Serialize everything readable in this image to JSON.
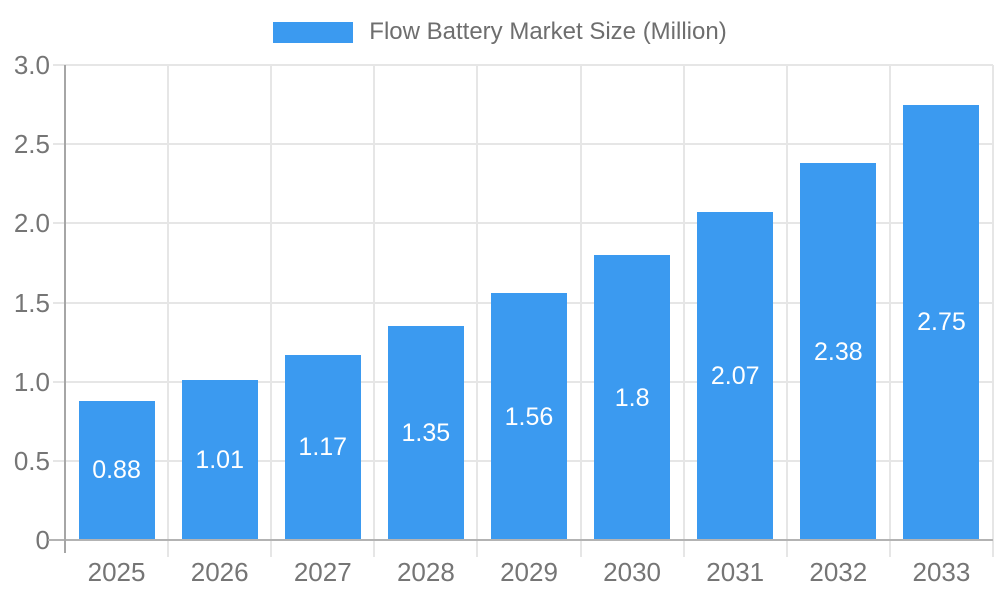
{
  "chart_data": {
    "type": "bar",
    "title": "Flow Battery Market Size (Million)",
    "legend": {
      "position": "top",
      "items": [
        {
          "label": "Flow Battery Market Size (Million)",
          "color": "#3B9AF0"
        }
      ]
    },
    "categories": [
      "2025",
      "2026",
      "2027",
      "2028",
      "2029",
      "2030",
      "2031",
      "2032",
      "2033"
    ],
    "series": [
      {
        "name": "Flow Battery Market Size (Million)",
        "values": [
          0.88,
          1.01,
          1.17,
          1.35,
          1.56,
          1.8,
          2.07,
          2.38,
          2.75
        ],
        "data_labels": [
          "0.88",
          "1.01",
          "1.17",
          "1.35",
          "1.56",
          "1.8",
          "2.07",
          "2.38",
          "2.75"
        ],
        "color": "#3B9AF0"
      }
    ],
    "xlabel": "",
    "ylabel": "",
    "ylim": [
      0,
      3
    ],
    "yticks": [
      {
        "value": 0,
        "label": "0"
      },
      {
        "value": 0.5,
        "label": "0.5"
      },
      {
        "value": 1,
        "label": "1.0"
      },
      {
        "value": 1.5,
        "label": "1.5"
      },
      {
        "value": 2,
        "label": "2.0"
      },
      {
        "value": 2.5,
        "label": "2.5"
      },
      {
        "value": 3,
        "label": "3.0"
      }
    ],
    "grid": {
      "horizontal": true,
      "vertical": true
    },
    "legend_position": "top",
    "colors": {
      "bar": "#3B9AF0",
      "gridline": "#E6E6E6",
      "axis_line": "#A6A6A6",
      "baseline": "#B3B3B3",
      "axis_text": "#757575",
      "legend_text": "#6E6E6E",
      "value_text": "#FFFFFF",
      "background": "#FFFFFF"
    }
  }
}
